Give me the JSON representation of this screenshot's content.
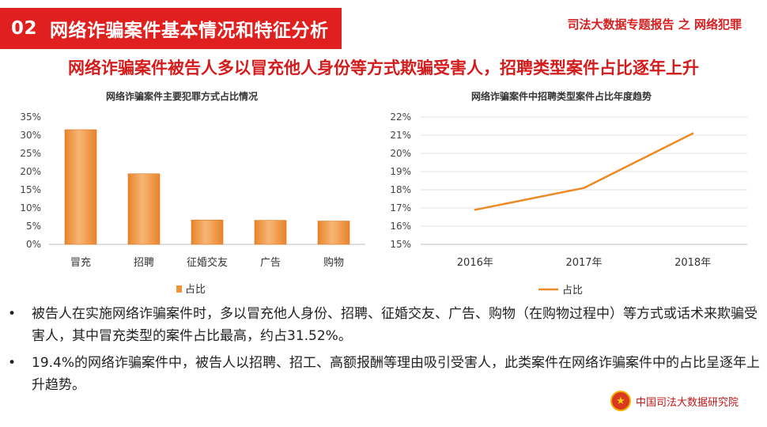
{
  "header": {
    "section_number": "02",
    "section_title": "网络诈骗案件基本情况和特征分析",
    "report_tag": "司法大数据专题报告 之 网络犯罪"
  },
  "headline": "网络诈骗案件被告人多以冒充他人身份等方式欺骗受害人，招聘类型案件占比逐年上升",
  "colors": {
    "accent_red": "#e0201f",
    "bar_orange": "#f0943c",
    "line_orange": "#ec8a25"
  },
  "chart_data": [
    {
      "type": "bar",
      "title": "网络诈骗案件主要犯罪方式占比情况",
      "categories": [
        "冒充",
        "招聘",
        "征婚交友",
        "广告",
        "购物"
      ],
      "series": [
        {
          "name": "占比",
          "values": [
            31.52,
            19.4,
            6.7,
            6.6,
            6.4
          ]
        }
      ],
      "y_tick_labels": [
        "0%",
        "5%",
        "10%",
        "15%",
        "20%",
        "25%",
        "30%",
        "35%"
      ],
      "ylim": [
        0,
        35
      ],
      "legend": "bottom"
    },
    {
      "type": "line",
      "title": "网络诈骗案件中招聘类型案件占比年度趋势",
      "categories": [
        "2016年",
        "2017年",
        "2018年"
      ],
      "series": [
        {
          "name": "占比",
          "values": [
            16.9,
            18.1,
            21.1
          ]
        }
      ],
      "y_tick_labels": [
        "15%",
        "16%",
        "17%",
        "18%",
        "19%",
        "20%",
        "21%",
        "22%"
      ],
      "ylim": [
        15,
        22
      ],
      "grid": true,
      "legend": "bottom"
    }
  ],
  "bullets": [
    {
      "dot": "•",
      "text": "被告人在实施网络诈骗案件时，多以冒充他人身份、招聘、征婚交友、广告、购物（在购物过程中）等方式或话术来欺骗受害人，其中冒充类型的案件占比最高，约占31.52%。"
    },
    {
      "dot": "•",
      "text": "19.4%的网络诈骗案件中，被告人以招聘、招工、高额报酬等理由吸引受害人，此类案件在网络诈骗案件中的占比呈逐年上升趋势。"
    }
  ],
  "footer": {
    "logo_icon": "court-emblem-icon",
    "logo_text": "中国司法大数据研究院"
  }
}
